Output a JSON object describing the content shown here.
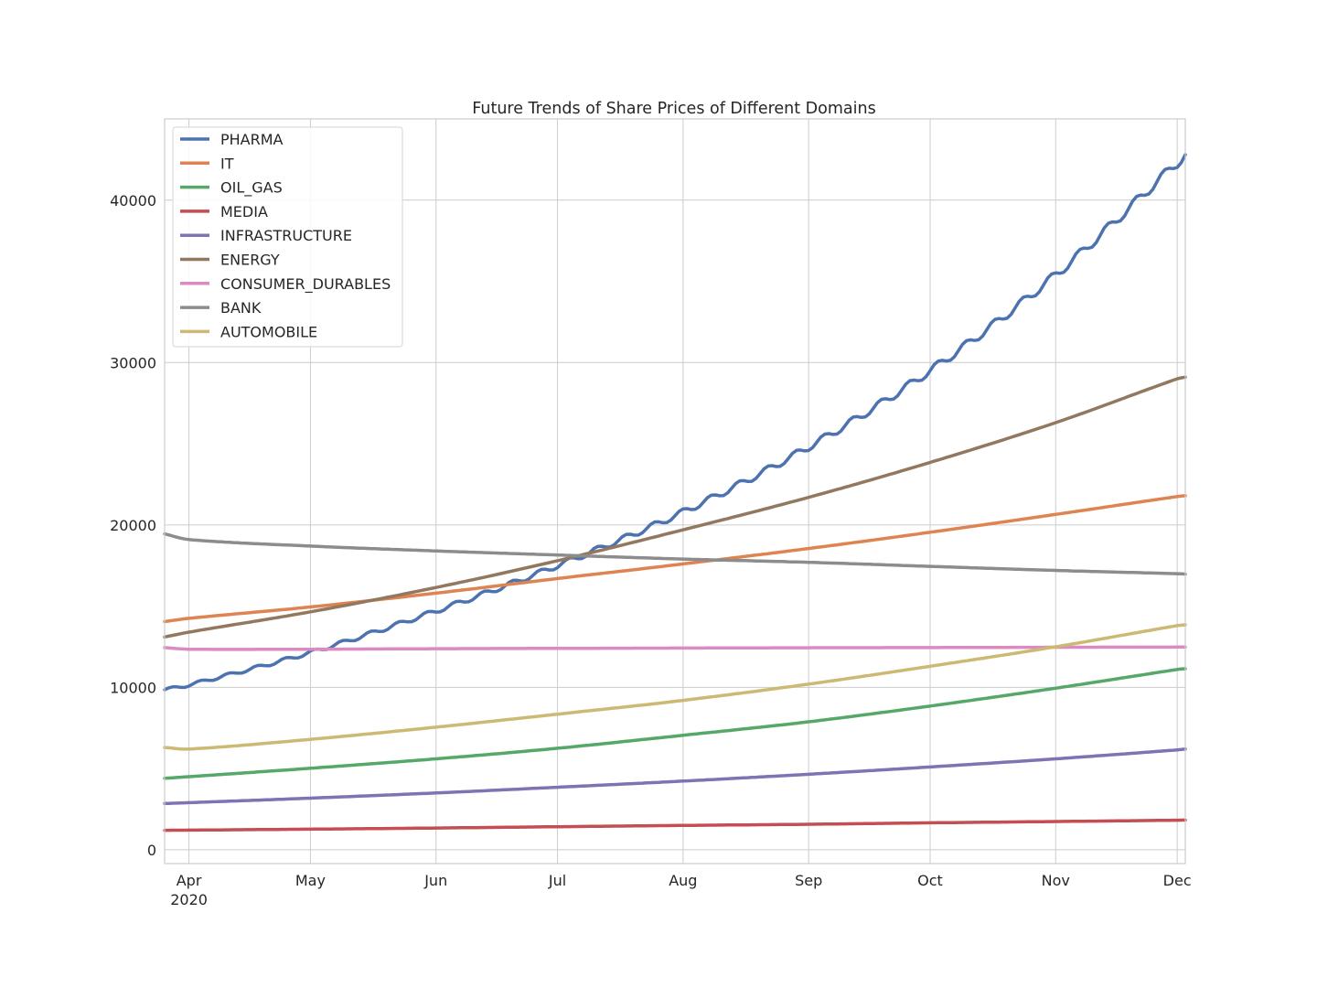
{
  "chart_data": {
    "type": "line",
    "title": "Future Trends of Share Prices of Different Domains",
    "xlabel": "",
    "ylabel": "",
    "x_axis": {
      "type": "date",
      "range": [
        "2020-03-26",
        "2020-12-03"
      ],
      "ticks": [
        {
          "date": "2020-04-01",
          "label": "Apr",
          "sublabel": "2020"
        },
        {
          "date": "2020-05-01",
          "label": "May"
        },
        {
          "date": "2020-06-01",
          "label": "Jun"
        },
        {
          "date": "2020-07-01",
          "label": "Jul"
        },
        {
          "date": "2020-08-01",
          "label": "Aug"
        },
        {
          "date": "2020-09-01",
          "label": "Sep"
        },
        {
          "date": "2020-10-01",
          "label": "Oct"
        },
        {
          "date": "2020-11-01",
          "label": "Nov"
        },
        {
          "date": "2020-12-01",
          "label": "Dec"
        }
      ]
    },
    "y_axis": {
      "range": [
        -850,
        45000
      ],
      "ticks": [
        {
          "value": 0,
          "label": "0"
        },
        {
          "value": 10000,
          "label": "10000"
        },
        {
          "value": 20000,
          "label": "20000"
        },
        {
          "value": 30000,
          "label": "30000"
        },
        {
          "value": 40000,
          "label": "40000"
        }
      ]
    },
    "grid": true,
    "legend_position": "upper-left",
    "x": [
      "2020-03-26",
      "2020-04-01",
      "2020-05-01",
      "2020-06-01",
      "2020-07-01",
      "2020-08-01",
      "2020-09-01",
      "2020-10-01",
      "2020-11-01",
      "2020-12-01",
      "2020-12-03"
    ],
    "series": [
      {
        "name": "PHARMA",
        "color": "#4c72b0",
        "weekly_wiggle": 150,
        "values": [
          9850,
          10150,
          12150,
          14700,
          17500,
          20800,
          24800,
          29500,
          35400,
          42300,
          42800
        ]
      },
      {
        "name": "IT",
        "color": "#dd8452",
        "values": [
          14050,
          14250,
          14950,
          15800,
          16700,
          17600,
          18550,
          19550,
          20650,
          21750,
          21800
        ]
      },
      {
        "name": "OIL_GAS",
        "color": "#55a868",
        "values": [
          4400,
          4500,
          5020,
          5600,
          6250,
          7050,
          7880,
          8850,
          9950,
          11100,
          11150
        ]
      },
      {
        "name": "MEDIA",
        "color": "#c44e52",
        "values": [
          1200,
          1210,
          1270,
          1340,
          1420,
          1500,
          1570,
          1660,
          1740,
          1820,
          1830
        ]
      },
      {
        "name": "INFRASTRUCTURE",
        "color": "#8172b3",
        "values": [
          2850,
          2900,
          3180,
          3500,
          3850,
          4230,
          4650,
          5100,
          5600,
          6150,
          6200
        ]
      },
      {
        "name": "ENERGY",
        "color": "#937860",
        "values": [
          13100,
          13400,
          14650,
          16150,
          17800,
          19700,
          21700,
          23850,
          26300,
          29000,
          29100
        ]
      },
      {
        "name": "CONSUMER_DURABLES",
        "color": "#da8bc3",
        "values": [
          12450,
          12350,
          12350,
          12380,
          12400,
          12420,
          12440,
          12450,
          12470,
          12480,
          12480
        ]
      },
      {
        "name": "BANK",
        "color": "#8c8c8c",
        "values": [
          19450,
          19100,
          18700,
          18400,
          18150,
          17900,
          17700,
          17450,
          17200,
          17000,
          16980
        ]
      },
      {
        "name": "AUTOMOBILE",
        "color": "#ccb974",
        "values": [
          6300,
          6200,
          6800,
          7550,
          8350,
          9200,
          10200,
          11300,
          12500,
          13800,
          13850
        ]
      }
    ]
  }
}
